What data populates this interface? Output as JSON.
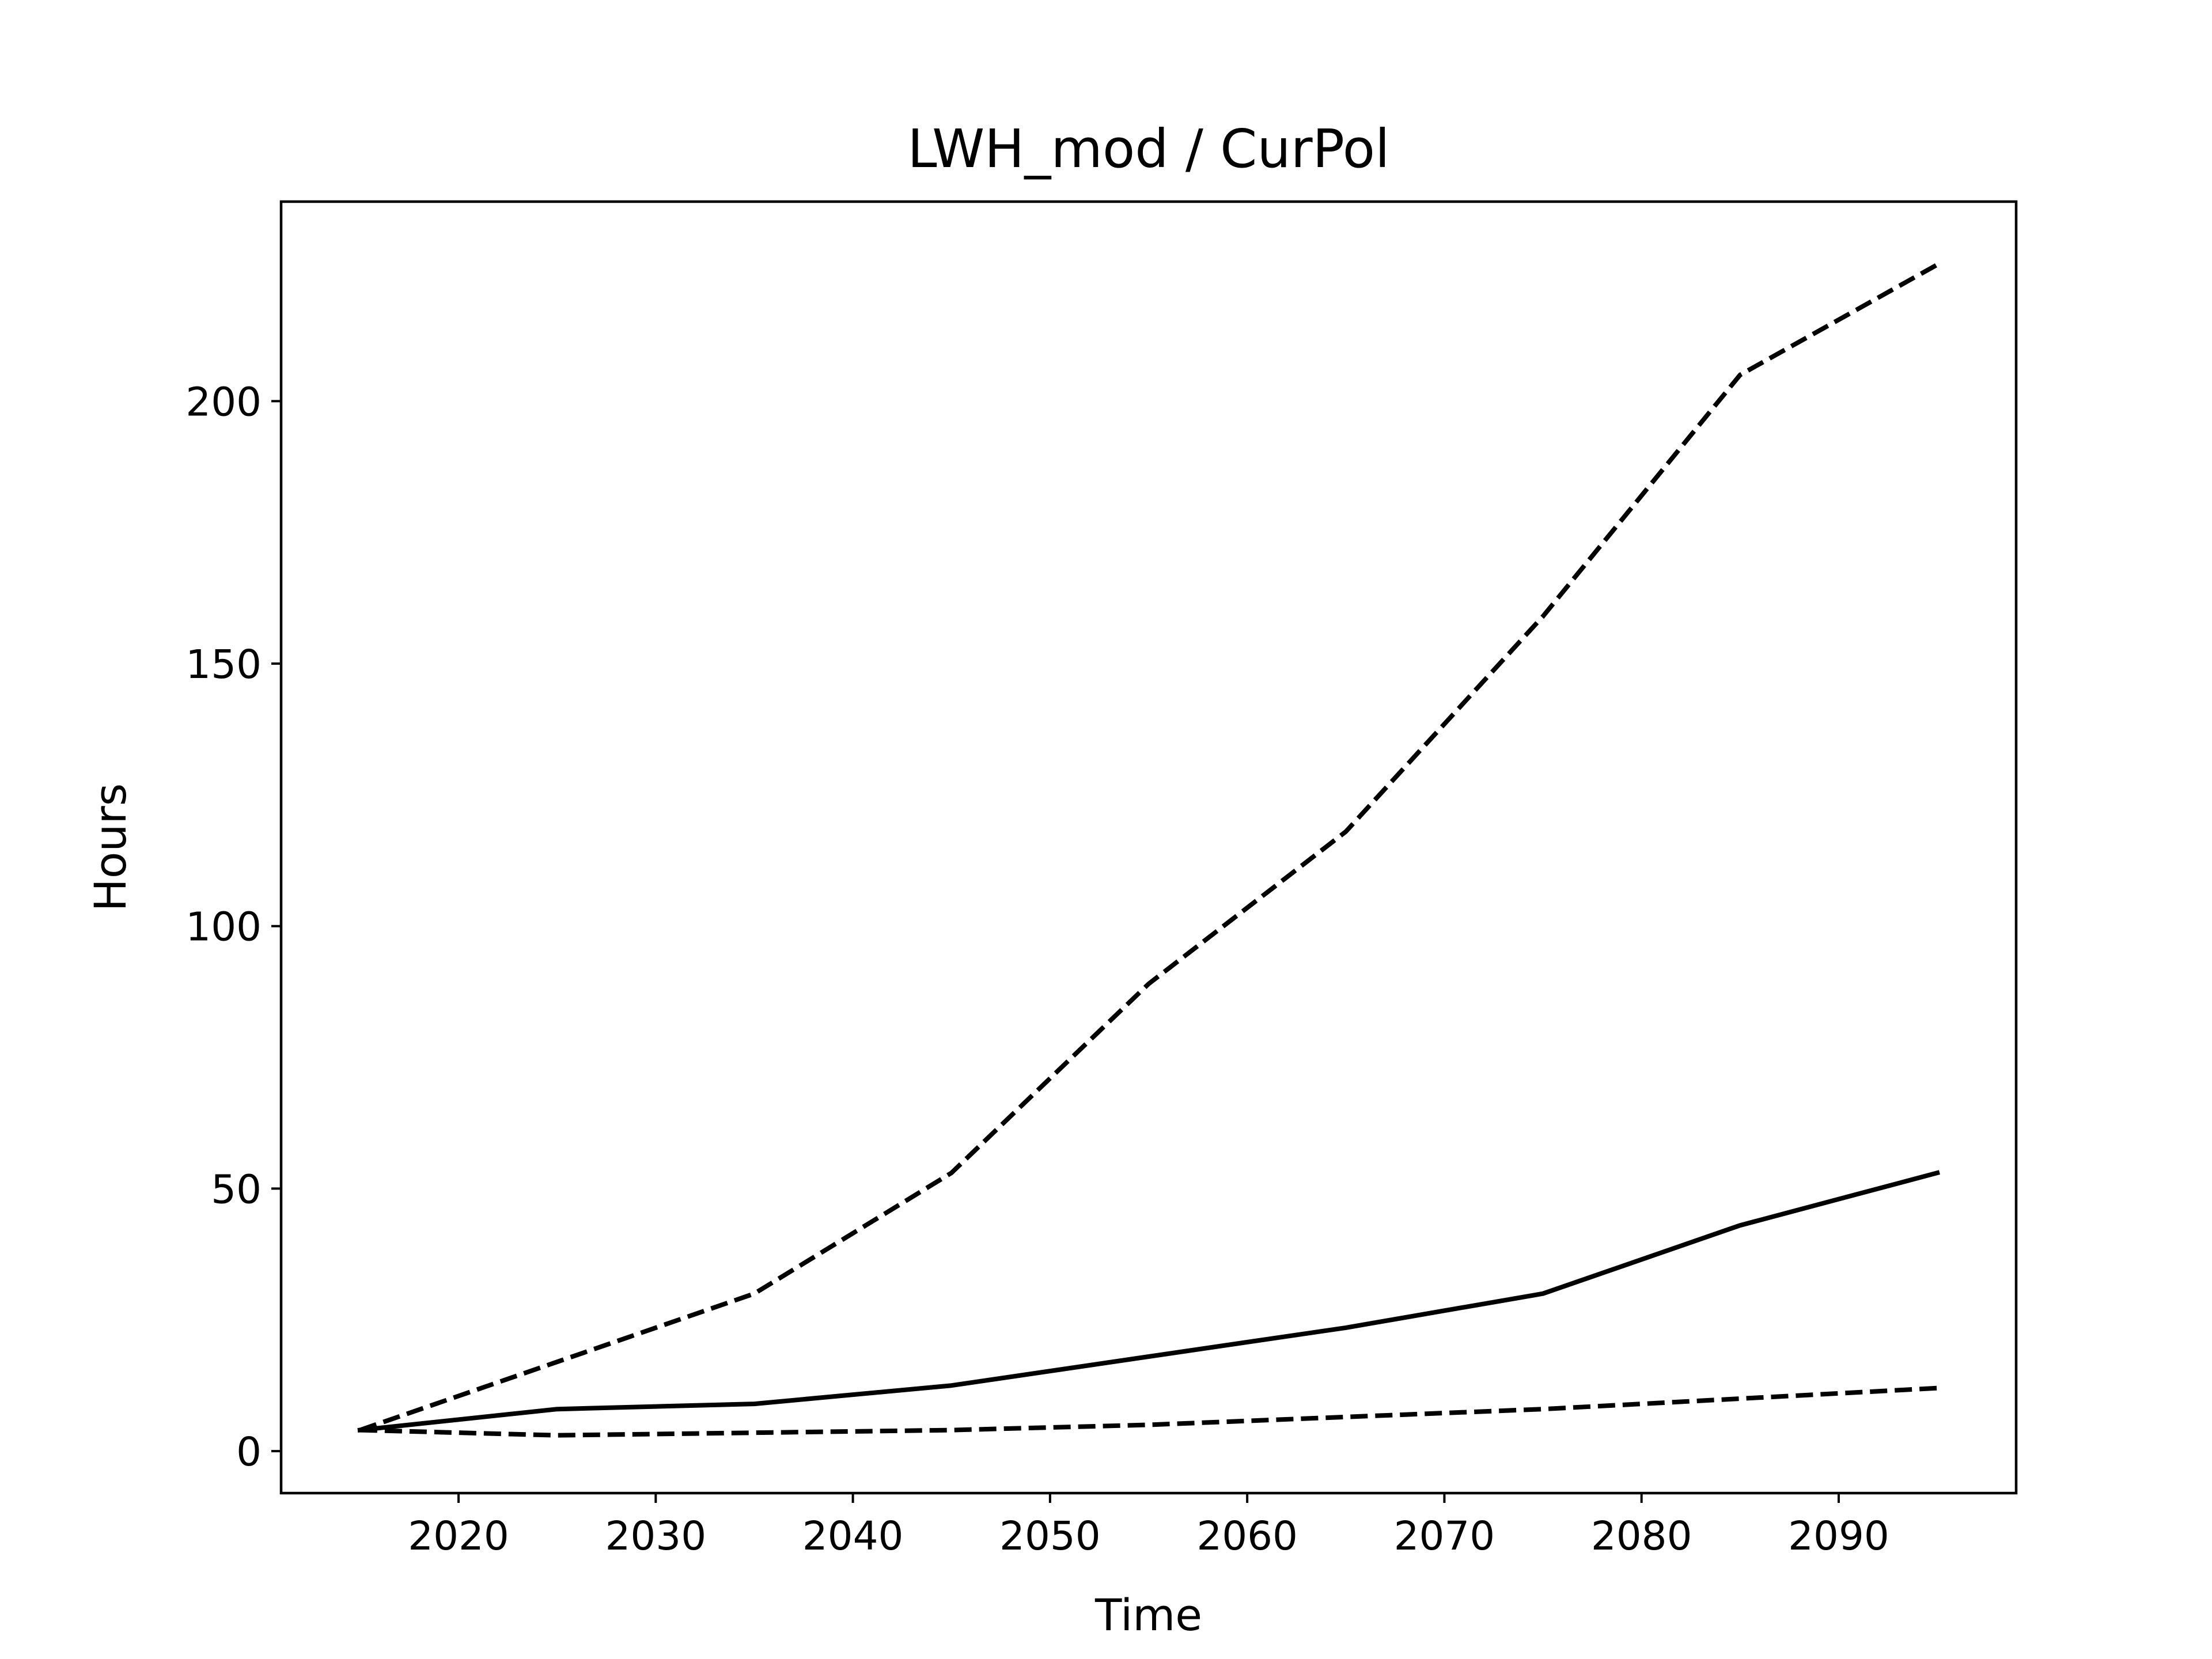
{
  "chart_data": {
    "type": "line",
    "title": "LWH_mod / CurPol",
    "xlabel": "Time",
    "ylabel": "Hours",
    "xlim": [
      2011,
      2099
    ],
    "ylim": [
      -8,
      238
    ],
    "x_ticks": [
      2020,
      2030,
      2040,
      2050,
      2060,
      2070,
      2080,
      2090
    ],
    "y_ticks": [
      0,
      50,
      100,
      150,
      200
    ],
    "grid": false,
    "legend": "none",
    "line_color": "#000000",
    "x": [
      2015,
      2025,
      2035,
      2045,
      2055,
      2065,
      2075,
      2085,
      2095
    ],
    "series": [
      {
        "style": "dashed",
        "values": [
          4,
          17,
          30,
          53,
          89,
          118,
          159,
          205,
          226
        ]
      },
      {
        "style": "solid",
        "values": [
          4,
          8,
          9,
          12.5,
          18,
          23.5,
          30,
          43,
          53
        ]
      },
      {
        "style": "dashed",
        "values": [
          4,
          3,
          3.5,
          4,
          5,
          6.5,
          8,
          10,
          12
        ]
      }
    ]
  }
}
